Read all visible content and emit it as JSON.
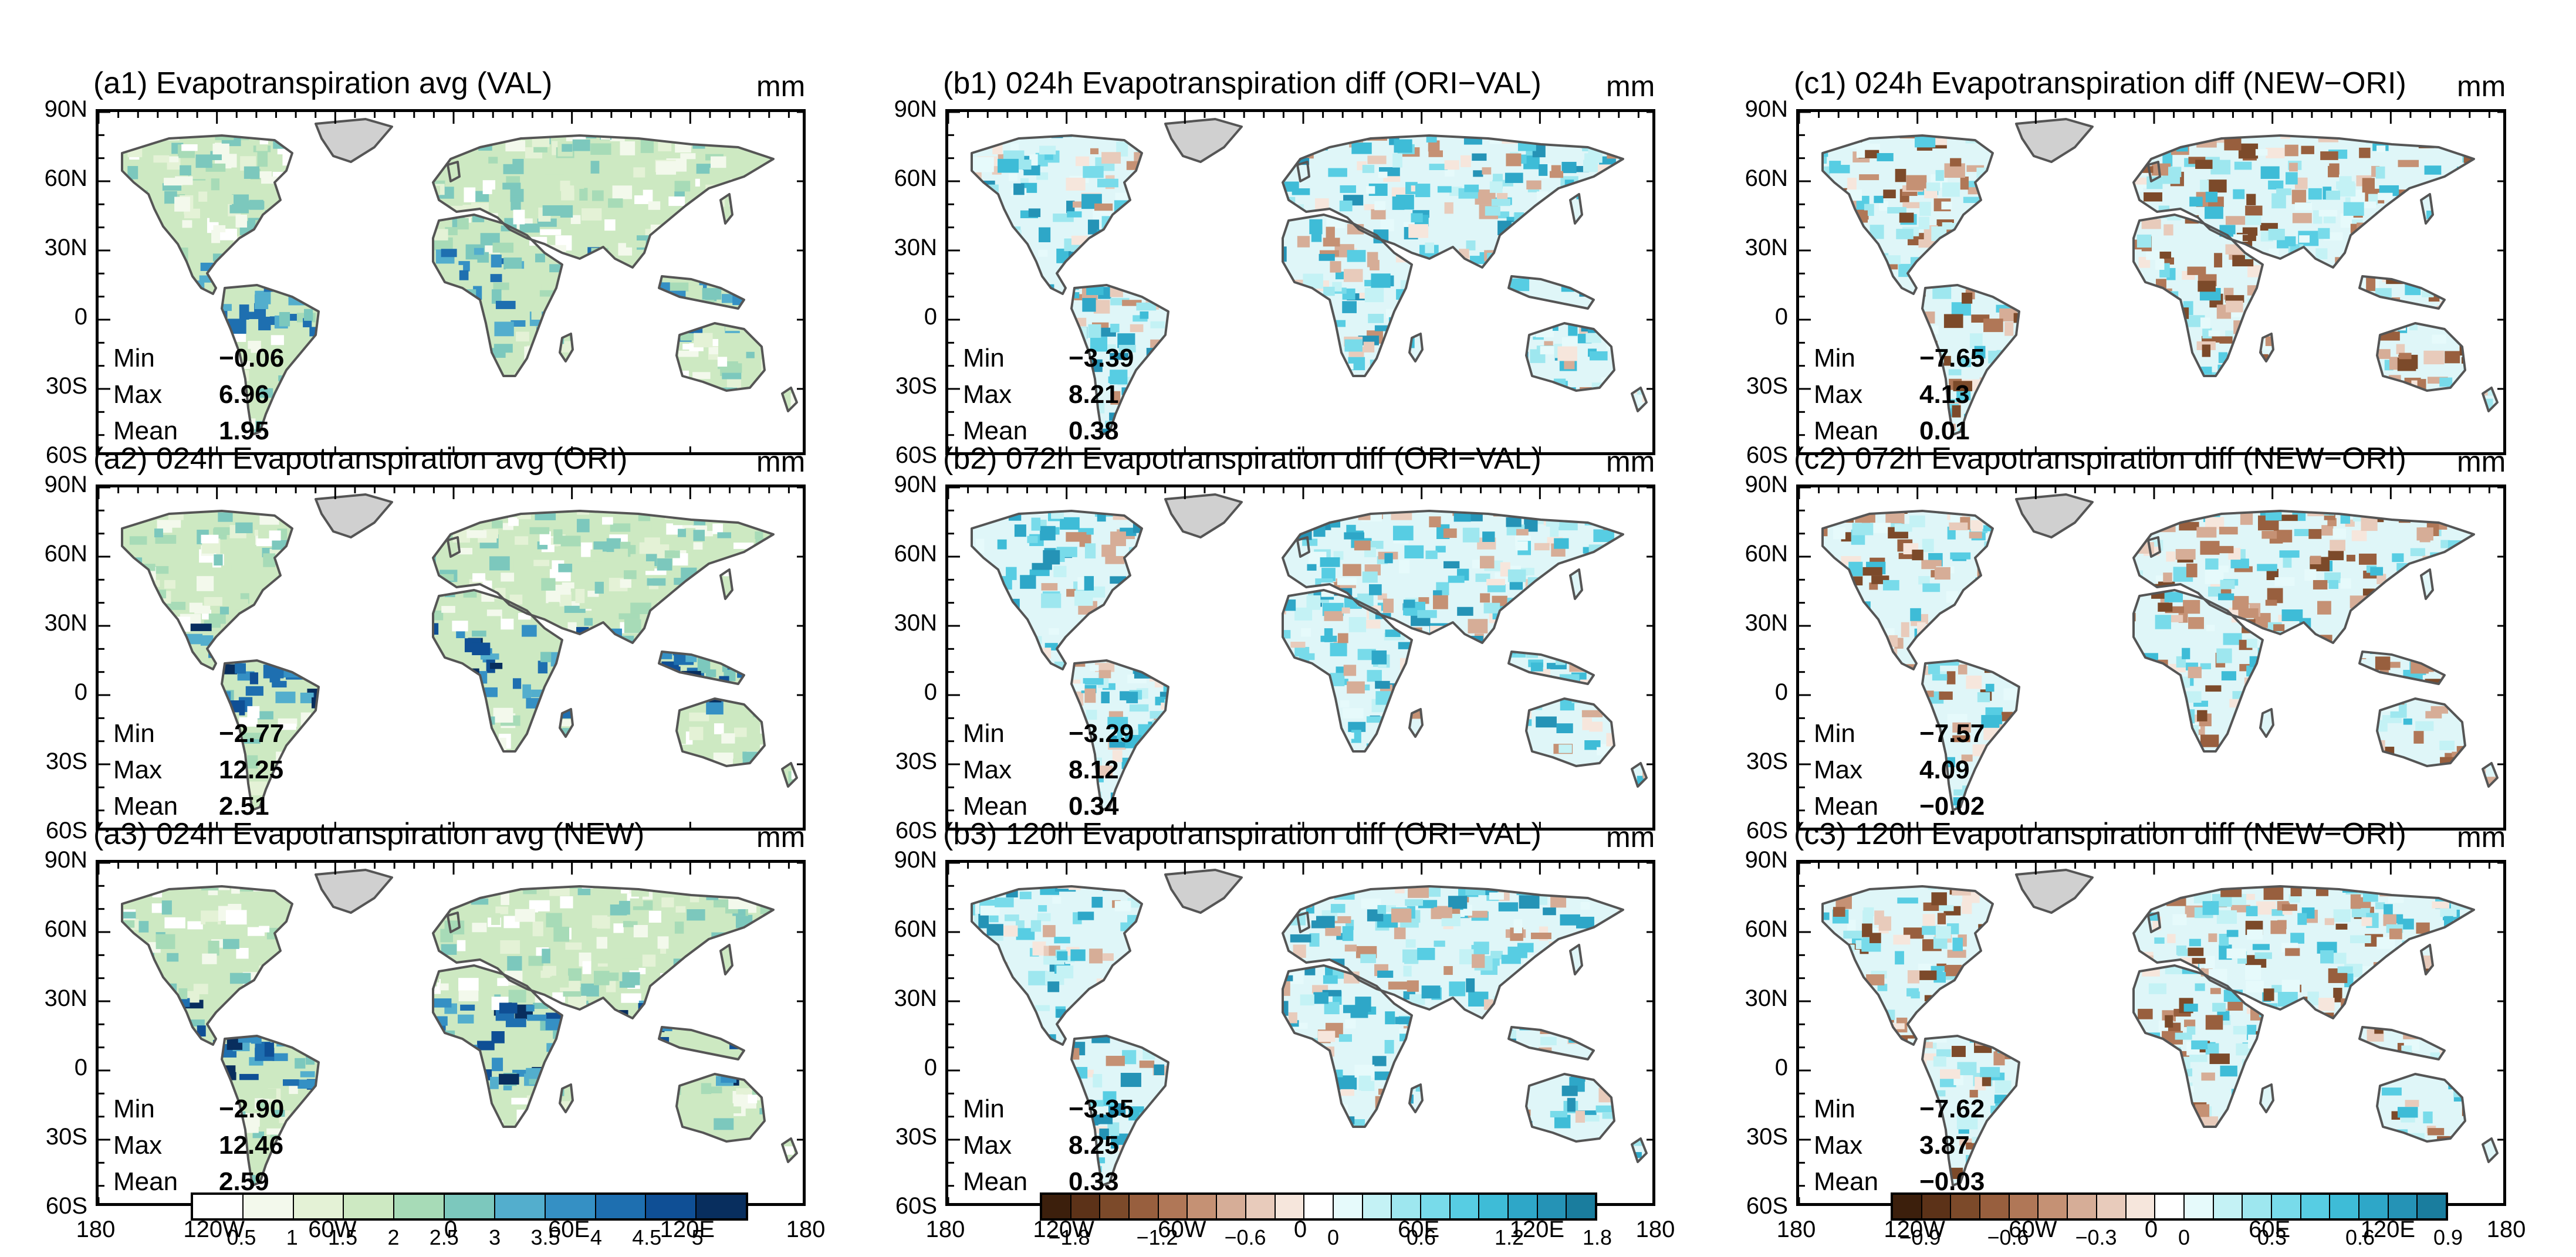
{
  "units": "mm",
  "panels": [
    {
      "title": "(a1) Evapotranspiration avg (VAL)",
      "stats": {
        "min": "−0.06",
        "max": "6.96",
        "mean": "1.95"
      }
    },
    {
      "title": "(b1) 024h Evapotranspiration diff (ORI−VAL)",
      "stats": {
        "min": "−3.39",
        "max": "8.21",
        "mean": "0.38"
      }
    },
    {
      "title": "(c1) 024h Evapotranspiration diff (NEW−ORI)",
      "stats": {
        "min": "−7.65",
        "max": "4.13",
        "mean": "0.01"
      }
    },
    {
      "title": "(a2) 024h Evapotranspiration avg (ORI)",
      "stats": {
        "min": "−2.77",
        "max": "12.25",
        "mean": "2.51"
      }
    },
    {
      "title": "(b2) 072h Evapotranspiration diff (ORI−VAL)",
      "stats": {
        "min": "−3.29",
        "max": "8.12",
        "mean": "0.34"
      }
    },
    {
      "title": "(c2) 072h Evapotranspiration diff (NEW−ORI)",
      "stats": {
        "min": "−7.57",
        "max": "4.09",
        "mean": "−0.02"
      }
    },
    {
      "title": "(a3) 024h Evapotranspiration avg (NEW)",
      "stats": {
        "min": "−2.90",
        "max": "12.46",
        "mean": "2.59"
      }
    },
    {
      "title": "(b3) 120h Evapotranspiration diff (ORI−VAL)",
      "stats": {
        "min": "−3.35",
        "max": "8.25",
        "mean": "0.33"
      }
    },
    {
      "title": "(c3) 120h Evapotranspiration diff (NEW−ORI)",
      "stats": {
        "min": "−7.62",
        "max": "3.87",
        "mean": "−0.03"
      }
    }
  ],
  "stat_labels": {
    "min": "Min",
    "max": "Max",
    "mean": "Mean"
  },
  "lat_ticks": [
    "90N",
    "60N",
    "30N",
    "0",
    "30S",
    "60S"
  ],
  "lon_ticks": [
    "180",
    "120W",
    "60W",
    "0",
    "60E",
    "120E",
    "180"
  ],
  "colorbars": [
    {
      "name": "avg",
      "colors": [
        "#ffffff",
        "#f3f9ec",
        "#e4f2d6",
        "#cde9c2",
        "#a7dbb7",
        "#7cc8bd",
        "#53aecd",
        "#3590c4",
        "#1e6fb0",
        "#0f4f95",
        "#082e5e"
      ],
      "labels": [
        "0.5",
        "1",
        "1.5",
        "2",
        "2.5",
        "3",
        "3.5",
        "4",
        "4.5",
        "5"
      ]
    },
    {
      "name": "diff_a",
      "colors": [
        "#3c1f0c",
        "#5c3218",
        "#7c4a2a",
        "#985f3e",
        "#b07757",
        "#c59174",
        "#d6ad97",
        "#e8cbbb",
        "#f6e6dc",
        "#ffffff",
        "#e6fafb",
        "#c4f2f5",
        "#9ee7ef",
        "#78dbea",
        "#57cde3",
        "#3ebcd7",
        "#2ea7c8",
        "#2593b6",
        "#1a7d9e"
      ],
      "labels": [
        "−1.8",
        "−1.2",
        "−0.6",
        "0",
        "0.6",
        "1.2",
        "1.8"
      ]
    },
    {
      "name": "diff_b",
      "colors": [
        "#3c1f0c",
        "#5c3218",
        "#7c4a2a",
        "#985f3e",
        "#b07757",
        "#c59174",
        "#d6ad97",
        "#e8cbbb",
        "#f6e6dc",
        "#ffffff",
        "#e6fafb",
        "#c4f2f5",
        "#9ee7ef",
        "#78dbea",
        "#57cde3",
        "#3ebcd7",
        "#2ea7c8",
        "#2593b6",
        "#1a7d9e"
      ],
      "labels": [
        "−0.9",
        "−0.6",
        "−0.3",
        "0",
        "0.3",
        "0.6",
        "0.9"
      ]
    }
  ]
}
